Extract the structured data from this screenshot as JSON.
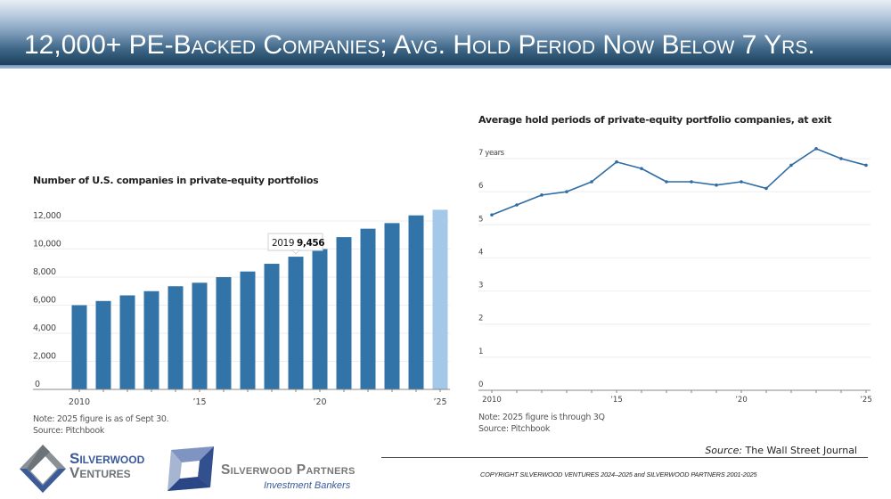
{
  "slide": {
    "title": "12,000+ PE-Backed Companies; Avg. Hold Period Now Below 7 Yrs.",
    "source_label": "Source:",
    "source_value": "The Wall Street Journal",
    "copyright": "COPYRIGHT SILVERWOOD VENTURES 2024–2025 and SILVERWOOD PARTNERS 2001-2025"
  },
  "logos": {
    "ventures_line1": "Silverwood",
    "ventures_line2": "Ventures",
    "partners_line1": "Silverwood Partners",
    "partners_line2": "Investment Bankers"
  },
  "colors": {
    "bar": "#3274a8",
    "bar_partial": "#a3c8e8",
    "line": "#2e6ca4",
    "grid": "#eeeeee",
    "axis": "#888888"
  },
  "chart_data": [
    {
      "type": "bar",
      "title": "Number of U.S. companies in private-equity portfolios",
      "categories": [
        "2010",
        "2011",
        "2012",
        "2013",
        "2014",
        "2015",
        "2016",
        "2017",
        "2018",
        "2019",
        "2020",
        "2021",
        "2022",
        "2023",
        "2024",
        "2025"
      ],
      "values": [
        6000,
        6300,
        6700,
        7000,
        7350,
        7600,
        8000,
        8400,
        8950,
        9456,
        10000,
        10850,
        11450,
        11850,
        12400,
        12800
      ],
      "partial_category": "2025",
      "ylim": [
        0,
        12000
      ],
      "yticks": [
        0,
        2000,
        4000,
        6000,
        8000,
        10000,
        12000
      ],
      "ytick_labels": [
        "0",
        "2,000",
        "4,000",
        "6,000",
        "8,000",
        "10,000",
        "12,000"
      ],
      "xtick_labels": [
        {
          "year": "2010",
          "label": "2010"
        },
        {
          "year": "2015",
          "label": "’15"
        },
        {
          "year": "2020",
          "label": "’20"
        },
        {
          "year": "2025",
          "label": "’25"
        }
      ],
      "annotation": {
        "year_label": "2019",
        "value_label": "9,456"
      },
      "xlabel": "",
      "ylabel": "",
      "grid": true,
      "note": "Note: 2025 figure is as of Sept 30.",
      "source": "Source: Pitchbook"
    },
    {
      "type": "line",
      "title": "Average hold periods of private-equity portfolio companies, at exit",
      "x": [
        "2010",
        "2011",
        "2012",
        "2013",
        "2014",
        "2015",
        "2016",
        "2017",
        "2018",
        "2019",
        "2020",
        "2021",
        "2022",
        "2023",
        "2024",
        "2025"
      ],
      "values": [
        5.3,
        5.6,
        5.9,
        6.0,
        6.3,
        6.9,
        6.7,
        6.3,
        6.3,
        6.2,
        6.3,
        6.1,
        6.8,
        7.3,
        7.0,
        6.8
      ],
      "ylim": [
        0,
        7
      ],
      "yticks": [
        0,
        1,
        2,
        3,
        4,
        5,
        6,
        7
      ],
      "ytick_labels": [
        "0",
        "1",
        "2",
        "3",
        "4",
        "5",
        "6",
        "7 years"
      ],
      "xtick_labels": [
        {
          "year": "2010",
          "label": "2010"
        },
        {
          "year": "2015",
          "label": "’15"
        },
        {
          "year": "2020",
          "label": "’20"
        },
        {
          "year": "2025",
          "label": "’25"
        }
      ],
      "xlabel": "",
      "ylabel": "",
      "grid": true,
      "note": "Note: 2025 figure is through 3Q",
      "source": "Source: Pitchbook"
    }
  ]
}
